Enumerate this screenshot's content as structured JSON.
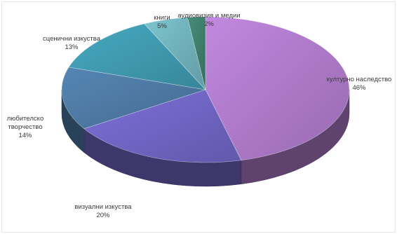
{
  "chart_data": {
    "type": "pie",
    "title": "",
    "legend": "none",
    "slices": [
      {
        "label": "културно наследство",
        "value": 46,
        "value_label": "46%",
        "color": "#ad79c8"
      },
      {
        "label": "визуални изкуства",
        "value": 20,
        "value_label": "20%",
        "color": "#6f64c2"
      },
      {
        "label": "любителско творчество",
        "label_lines": [
          "любителско",
          "творчество"
        ],
        "value": 14,
        "value_label": "14%",
        "color": "#4d78a2"
      },
      {
        "label": "сценични изкуства",
        "value": 13,
        "value_label": "13%",
        "color": "#3f98ad"
      },
      {
        "label": "книги",
        "value": 5,
        "value_label": "5%",
        "color": "#6fb0ba"
      },
      {
        "label": "аудиовизия и медии",
        "value": 2,
        "value_label": "2%",
        "color": "#3f7d6c"
      }
    ]
  }
}
